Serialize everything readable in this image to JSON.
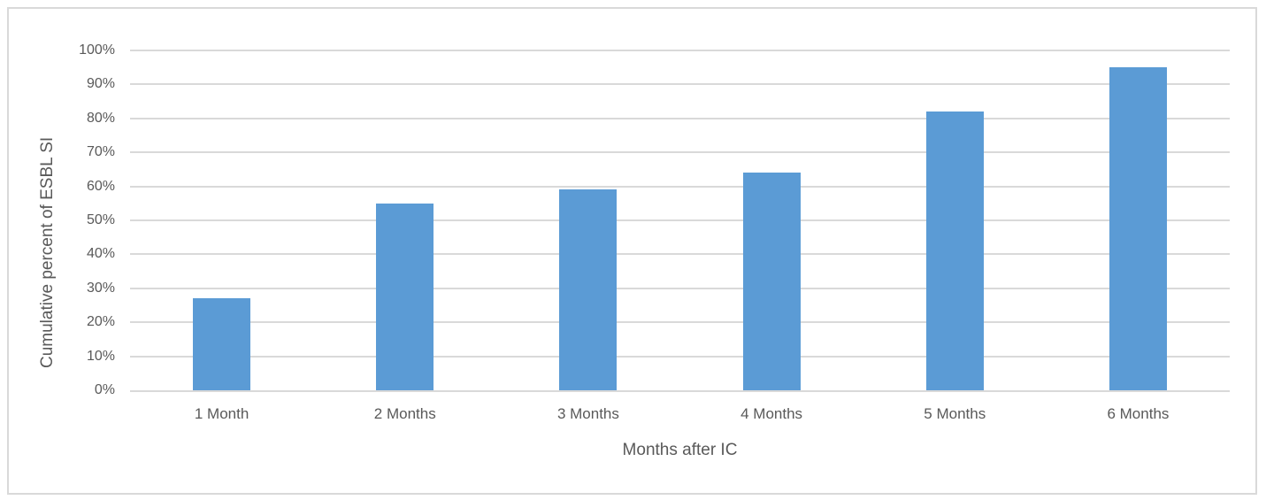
{
  "chart_data": {
    "type": "bar",
    "categories": [
      "1 Month",
      "2 Months",
      "3 Months",
      "4 Months",
      "5 Months",
      "6 Months"
    ],
    "values": [
      27,
      55,
      59,
      64,
      82,
      95
    ],
    "xlabel": "Months after IC",
    "ylabel": "Cumulative percent of ESBL SI",
    "ylim": [
      0,
      100
    ],
    "ytick_labels": [
      "0%",
      "10%",
      "20%",
      "30%",
      "40%",
      "50%",
      "60%",
      "70%",
      "80%",
      "90%",
      "100%"
    ],
    "grid": "horizontal",
    "legend": "none",
    "bar_color": "#5b9bd5",
    "gridline_color": "#d9d9d9",
    "axis_line_color": "#d9d9d9",
    "frame_border_color": "#d9d9d9",
    "text_color": "#595959",
    "background_color": "#ffffff"
  }
}
